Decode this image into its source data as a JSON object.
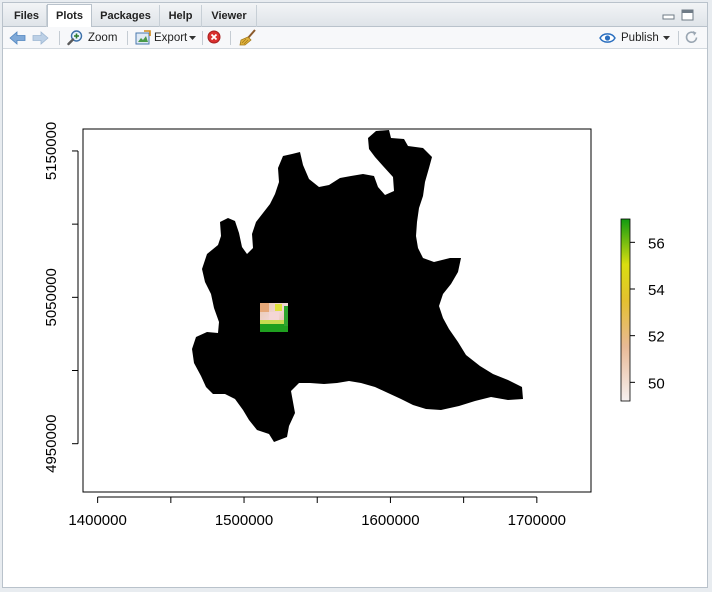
{
  "tabs": [
    {
      "label": "Files",
      "active": false
    },
    {
      "label": "Plots",
      "active": true
    },
    {
      "label": "Packages",
      "active": false
    },
    {
      "label": "Help",
      "active": false
    },
    {
      "label": "Viewer",
      "active": false
    }
  ],
  "toolbar": {
    "zoom_label": "Zoom",
    "export_label": "Export",
    "publish_label": "Publish"
  },
  "icons": [
    "back-arrow-icon",
    "forward-arrow-icon",
    "zoom-icon",
    "export-icon",
    "remove-plot-icon",
    "broom-icon",
    "publish-icon",
    "refresh-icon",
    "minimize-icon",
    "maximize-icon"
  ],
  "colors": {
    "accent": "#2b6fbf",
    "map_fill": "#000000",
    "ramp_low": "#f3e9ea",
    "ramp_mid": "#e4c030",
    "ramp_high": "#119a11"
  },
  "chart_data": {
    "type": "heatmap",
    "x_ticks": [
      1400000,
      1500000,
      1600000,
      1700000
    ],
    "x_tick_labels": [
      "1400000",
      "1500000",
      "1600000",
      "1700000"
    ],
    "y_ticks": [
      4950000,
      5050000,
      5150000
    ],
    "y_tick_labels": [
      "4950000",
      "5050000",
      "5150000"
    ],
    "xlim": [
      1390000,
      1737000
    ],
    "ylim": [
      4917000,
      5165000
    ],
    "legend": {
      "ticks": [
        50,
        52,
        54,
        56
      ],
      "tick_labels": [
        "50",
        "52",
        "54",
        "56"
      ],
      "range": [
        49.2,
        57.0
      ],
      "placement": "right"
    },
    "raster_block": {
      "x": [
        1505000,
        1527000
      ],
      "y": [
        5030000,
        5052000
      ],
      "value_range": [
        49.2,
        57.0
      ]
    }
  }
}
